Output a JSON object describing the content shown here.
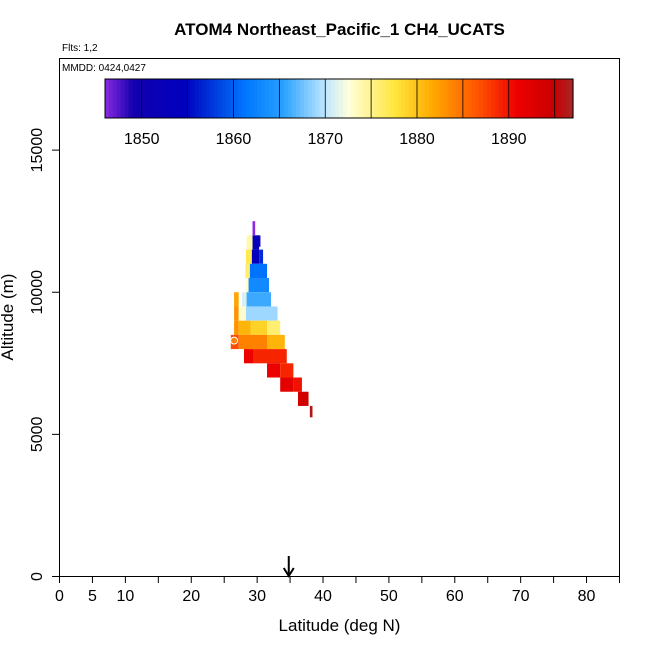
{
  "chart_data": {
    "type": "heatmap",
    "title": "ATOM4 Northeast_Pacific_1 CH4_UCATS",
    "flights_label": "Flts: 1,2",
    "mmdd_label": "MMDD: 0424,0427",
    "xlabel": "Latitude (deg N)",
    "ylabel": "Altitude (m)",
    "xlim": [
      0,
      85
    ],
    "ylim": [
      0,
      18000
    ],
    "x_tick_labels": [
      "0",
      "5",
      "10",
      "20",
      "30",
      "40",
      "50",
      "60",
      "70",
      "80"
    ],
    "y_tick_labels": [
      "0",
      "5000",
      "10000",
      "15000"
    ],
    "colorbar": {
      "range": [
        1846,
        1897
      ],
      "tick_labels": [
        "1850",
        "1860",
        "1870",
        "1880",
        "1890"
      ]
    },
    "marker": {
      "type": "arrow",
      "latitude": 34.8
    },
    "open_circle": {
      "latitude": 26.5,
      "altitude": 8300,
      "value": 1884
    },
    "cells": [
      {
        "lat0": 29.5,
        "lat1": 30.5,
        "alt0": 11600,
        "alt1": 12000,
        "value": 1849
      },
      {
        "lat0": 28.4,
        "lat1": 29.3,
        "alt0": 11500,
        "alt1": 12000,
        "value": 1874
      },
      {
        "lat0": 29.3,
        "lat1": 30.3,
        "alt0": 11500,
        "alt1": 12000,
        "value": 1853
      },
      {
        "lat0": 29.3,
        "lat1": 29.7,
        "alt0": 12000,
        "alt1": 12500,
        "value": 1846
      },
      {
        "lat0": 28.3,
        "lat1": 29.2,
        "alt0": 11000,
        "alt1": 11500,
        "value": 1877
      },
      {
        "lat0": 29.2,
        "lat1": 30.3,
        "alt0": 11000,
        "alt1": 11500,
        "value": 1854
      },
      {
        "lat0": 30.3,
        "lat1": 30.9,
        "alt0": 11000,
        "alt1": 11500,
        "value": 1857
      },
      {
        "lat0": 28.2,
        "lat1": 28.9,
        "alt0": 10500,
        "alt1": 11000,
        "value": 1876
      },
      {
        "lat0": 28.9,
        "lat1": 31.5,
        "alt0": 10500,
        "alt1": 11000,
        "value": 1861
      },
      {
        "lat0": 28.2,
        "lat1": 28.7,
        "alt0": 10000,
        "alt1": 10500,
        "value": 1873
      },
      {
        "lat0": 28.7,
        "lat1": 31.8,
        "alt0": 10000,
        "alt1": 10500,
        "value": 1863
      },
      {
        "lat0": 26.5,
        "lat1": 27.2,
        "alt0": 9500,
        "alt1": 10000,
        "value": 1882
      },
      {
        "lat0": 27.7,
        "lat1": 28.4,
        "alt0": 9500,
        "alt1": 10000,
        "value": 1871
      },
      {
        "lat0": 28.4,
        "lat1": 32.1,
        "alt0": 9500,
        "alt1": 10000,
        "value": 1866
      },
      {
        "lat0": 26.5,
        "lat1": 27.2,
        "alt0": 9000,
        "alt1": 9500,
        "value": 1883
      },
      {
        "lat0": 27.2,
        "lat1": 28.3,
        "alt0": 9000,
        "alt1": 9500,
        "value": 1873
      },
      {
        "lat0": 28.3,
        "lat1": 33.1,
        "alt0": 9000,
        "alt1": 9500,
        "value": 1869
      },
      {
        "lat0": 26.5,
        "lat1": 27.2,
        "alt0": 8500,
        "alt1": 9000,
        "value": 1883
      },
      {
        "lat0": 27.2,
        "lat1": 29.0,
        "alt0": 8500,
        "alt1": 9000,
        "value": 1881
      },
      {
        "lat0": 29.0,
        "lat1": 31.5,
        "alt0": 8500,
        "alt1": 9000,
        "value": 1879
      },
      {
        "lat0": 31.5,
        "lat1": 33.5,
        "alt0": 8500,
        "alt1": 9000,
        "value": 1876
      },
      {
        "lat0": 26.0,
        "lat1": 27.2,
        "alt0": 8000,
        "alt1": 8500,
        "value": 1887
      },
      {
        "lat0": 27.2,
        "lat1": 31.5,
        "alt0": 8000,
        "alt1": 8500,
        "value": 1884
      },
      {
        "lat0": 31.5,
        "lat1": 34.2,
        "alt0": 8000,
        "alt1": 8500,
        "value": 1881
      },
      {
        "lat0": 28.0,
        "lat1": 29.5,
        "alt0": 7500,
        "alt1": 8000,
        "value": 1891
      },
      {
        "lat0": 29.5,
        "lat1": 34.5,
        "alt0": 7500,
        "alt1": 8000,
        "value": 1889
      },
      {
        "lat0": 31.5,
        "lat1": 33.5,
        "alt0": 7000,
        "alt1": 7500,
        "value": 1891
      },
      {
        "lat0": 33.5,
        "lat1": 35.5,
        "alt0": 7000,
        "alt1": 7500,
        "value": 1889
      },
      {
        "lat0": 33.5,
        "lat1": 35.5,
        "alt0": 6500,
        "alt1": 7000,
        "value": 1892
      },
      {
        "lat0": 35.5,
        "lat1": 36.8,
        "alt0": 6500,
        "alt1": 7000,
        "value": 1890
      },
      {
        "lat0": 36.2,
        "lat1": 37.8,
        "alt0": 6000,
        "alt1": 6500,
        "value": 1894
      },
      {
        "lat0": 38.0,
        "lat1": 38.4,
        "alt0": 5600,
        "alt1": 6000,
        "value": 1896
      }
    ]
  }
}
